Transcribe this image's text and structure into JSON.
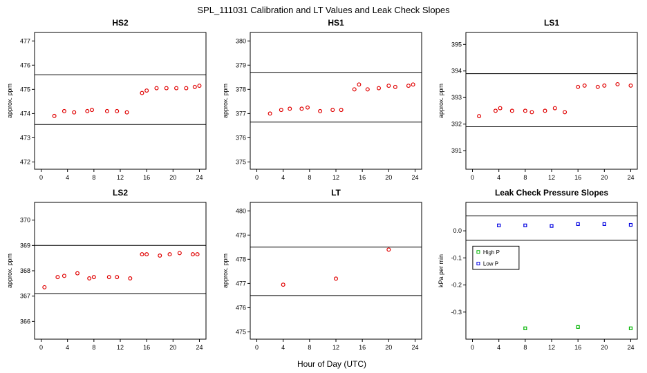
{
  "page": {
    "title": "SPL_111031  Calibration and LT Values and Leak Check Slopes",
    "xlabel": "Hour of Day (UTC)"
  },
  "colors": {
    "calibration_points": "#e00000",
    "high_p": "#00b400",
    "low_p": "#0000e0",
    "axis": "#000000",
    "background": "#ffffff"
  },
  "chart_data": [
    {
      "type": "scatter",
      "title": "HS2",
      "ylabel": "approx. ppm",
      "xlim": [
        -1,
        25
      ],
      "ylim": [
        471.7,
        477.35
      ],
      "xticks": [
        0,
        4,
        8,
        12,
        16,
        20,
        24
      ],
      "yticks": [
        472,
        473,
        474,
        475,
        476,
        477
      ],
      "hlines": [
        473.55,
        475.6
      ],
      "grid": false,
      "series": [
        {
          "name": "HS2-values",
          "color": "#e00000",
          "symbol": "circle",
          "points": [
            [
              2,
              473.9
            ],
            [
              3.5,
              474.1
            ],
            [
              5,
              474.05
            ],
            [
              7,
              474.1
            ],
            [
              7.7,
              474.15
            ],
            [
              10,
              474.1
            ],
            [
              11.5,
              474.1
            ],
            [
              13,
              474.05
            ],
            [
              15.3,
              474.85
            ],
            [
              16,
              474.95
            ],
            [
              17.5,
              475.05
            ],
            [
              19,
              475.05
            ],
            [
              20.5,
              475.05
            ],
            [
              22,
              475.05
            ],
            [
              23.3,
              475.1
            ],
            [
              24,
              475.15
            ]
          ]
        }
      ]
    },
    {
      "type": "scatter",
      "title": "HS1",
      "ylabel": "approx. ppm",
      "xlim": [
        -1,
        25
      ],
      "ylim": [
        374.7,
        380.35
      ],
      "xticks": [
        0,
        4,
        8,
        12,
        16,
        20,
        24
      ],
      "yticks": [
        375,
        376,
        377,
        378,
        379,
        380
      ],
      "hlines": [
        376.65,
        378.7
      ],
      "grid": false,
      "series": [
        {
          "name": "HS1-values",
          "color": "#e00000",
          "symbol": "circle",
          "points": [
            [
              2,
              377.0
            ],
            [
              3.7,
              377.15
            ],
            [
              5,
              377.2
            ],
            [
              6.8,
              377.2
            ],
            [
              7.7,
              377.25
            ],
            [
              9.6,
              377.1
            ],
            [
              11.5,
              377.15
            ],
            [
              12.8,
              377.15
            ],
            [
              14.8,
              378.0
            ],
            [
              15.5,
              378.2
            ],
            [
              16.8,
              378.0
            ],
            [
              18.5,
              378.05
            ],
            [
              20,
              378.15
            ],
            [
              21,
              378.1
            ],
            [
              23,
              378.15
            ],
            [
              23.7,
              378.2
            ]
          ]
        }
      ]
    },
    {
      "type": "scatter",
      "title": "LS1",
      "ylabel": "approx. ppm",
      "xlim": [
        -1,
        25
      ],
      "ylim": [
        390.3,
        395.45
      ],
      "xticks": [
        0,
        4,
        8,
        12,
        16,
        20,
        24
      ],
      "yticks": [
        391,
        392,
        393,
        394,
        395
      ],
      "hlines": [
        391.9,
        393.9
      ],
      "grid": false,
      "series": [
        {
          "name": "LS1-values",
          "color": "#e00000",
          "symbol": "circle",
          "points": [
            [
              1,
              392.3
            ],
            [
              3.5,
              392.5
            ],
            [
              4.2,
              392.6
            ],
            [
              6,
              392.5
            ],
            [
              8,
              392.5
            ],
            [
              9,
              392.45
            ],
            [
              11,
              392.5
            ],
            [
              12.5,
              392.6
            ],
            [
              14,
              392.45
            ],
            [
              16,
              393.4
            ],
            [
              17,
              393.45
            ],
            [
              19,
              393.4
            ],
            [
              20,
              393.45
            ],
            [
              22,
              393.5
            ],
            [
              24,
              393.45
            ]
          ]
        }
      ]
    },
    {
      "type": "scatter",
      "title": "LS2",
      "ylabel": "approx. ppm",
      "xlim": [
        -1,
        25
      ],
      "ylim": [
        365.3,
        370.7
      ],
      "xticks": [
        0,
        4,
        8,
        12,
        16,
        20,
        24
      ],
      "yticks": [
        366,
        367,
        368,
        369,
        370
      ],
      "hlines": [
        367.1,
        369.0
      ],
      "grid": false,
      "series": [
        {
          "name": "LS2-values",
          "color": "#e00000",
          "symbol": "circle",
          "points": [
            [
              0.5,
              367.35
            ],
            [
              2.5,
              367.75
            ],
            [
              3.5,
              367.8
            ],
            [
              5.5,
              367.9
            ],
            [
              7.3,
              367.7
            ],
            [
              8,
              367.75
            ],
            [
              10.3,
              367.75
            ],
            [
              11.5,
              367.75
            ],
            [
              13.5,
              367.7
            ],
            [
              15.3,
              368.65
            ],
            [
              16,
              368.65
            ],
            [
              18,
              368.6
            ],
            [
              19.5,
              368.65
            ],
            [
              21,
              368.7
            ],
            [
              23,
              368.65
            ],
            [
              23.7,
              368.65
            ]
          ]
        }
      ]
    },
    {
      "type": "scatter",
      "title": "LT",
      "ylabel": "approx. ppm",
      "xlim": [
        -1,
        25
      ],
      "ylim": [
        474.7,
        480.35
      ],
      "xticks": [
        0,
        4,
        8,
        12,
        16,
        20,
        24
      ],
      "yticks": [
        475,
        476,
        477,
        478,
        479,
        480
      ],
      "hlines": [
        476.5,
        478.5
      ],
      "grid": false,
      "series": [
        {
          "name": "LT-values",
          "color": "#e00000",
          "symbol": "circle",
          "points": [
            [
              4,
              476.95
            ],
            [
              12,
              477.2
            ],
            [
              20,
              478.4
            ]
          ]
        }
      ]
    },
    {
      "type": "scatter",
      "title": "Leak Check Pressure Slopes",
      "ylabel": "kPa per min",
      "xlim": [
        -1,
        25
      ],
      "ylim": [
        -0.4,
        0.105
      ],
      "xticks": [
        0,
        4,
        8,
        12,
        16,
        20,
        24
      ],
      "yticks": [
        0.0,
        -0.1,
        -0.2,
        -0.3
      ],
      "yticklabels": [
        "0.0",
        "-0.1",
        "-0.2",
        "-0.3"
      ],
      "hlines": [
        0.055,
        -0.035
      ],
      "grid": false,
      "legend": {
        "x": 0.04,
        "y": 0.32,
        "w": 0.27,
        "h": 0.17,
        "position": "left-middle",
        "entries": [
          {
            "label": "High P",
            "color": "#00b400"
          },
          {
            "label": "Low P",
            "color": "#0000e0"
          }
        ]
      },
      "series": [
        {
          "name": "High P",
          "color": "#00b400",
          "symbol": "square",
          "points": [
            [
              8,
              -0.36
            ],
            [
              16,
              -0.355
            ],
            [
              24,
              -0.36
            ]
          ]
        },
        {
          "name": "Low P",
          "color": "#0000e0",
          "symbol": "square",
          "points": [
            [
              4,
              0.02
            ],
            [
              8,
              0.02
            ],
            [
              12,
              0.018
            ],
            [
              16,
              0.025
            ],
            [
              20,
              0.025
            ],
            [
              24,
              0.022
            ]
          ]
        }
      ]
    }
  ]
}
